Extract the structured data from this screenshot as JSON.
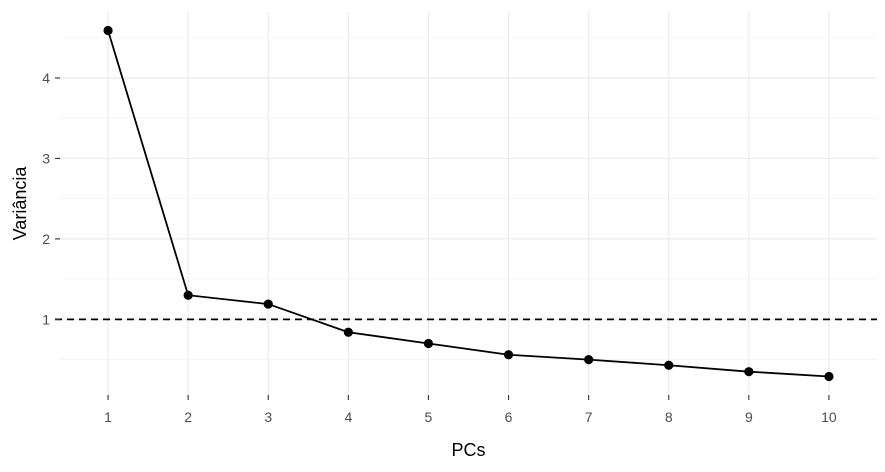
{
  "chart_data": {
    "type": "line",
    "title": "",
    "xlabel": "PCs",
    "ylabel": "Variância",
    "x": [
      1,
      2,
      3,
      4,
      5,
      6,
      7,
      8,
      9,
      10
    ],
    "series": [
      {
        "values": [
          4.59,
          1.3,
          1.19,
          0.84,
          0.7,
          0.56,
          0.5,
          0.43,
          0.35,
          0.29
        ]
      }
    ],
    "reference_line": {
      "orientation": "horizontal",
      "value": 1,
      "style": "dashed"
    },
    "xticks": [
      1,
      2,
      3,
      4,
      5,
      6,
      7,
      8,
      9,
      10
    ],
    "yticks": [
      1,
      2,
      3,
      4
    ],
    "xlim": [
      0.4,
      10.6
    ],
    "ylim": [
      0.06,
      4.82
    ],
    "grid": true,
    "theme": "minimal",
    "colors": {
      "line": "#000000",
      "grid": "#ebebeb"
    }
  }
}
